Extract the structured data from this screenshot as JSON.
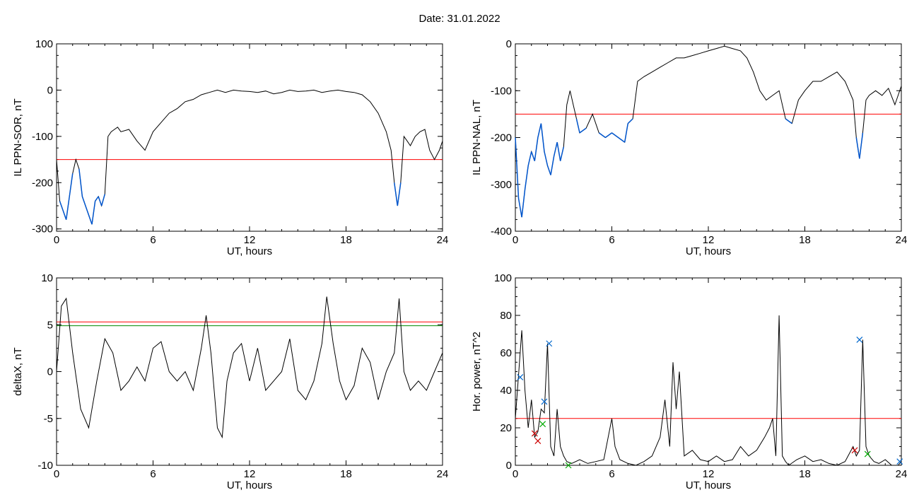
{
  "header": {
    "title": "Date:  31.01.2022"
  },
  "colors": {
    "threshold": "#ff0000",
    "highlight": "#0055cc",
    "second": "#008800",
    "marker_blue": "#0066cc",
    "marker_red": "#cc0000",
    "marker_green": "#00aa00"
  },
  "chart_data": [
    {
      "type": "line",
      "ylabel": "IL PPN-SOR, nT",
      "xlabel": "UT, hours",
      "xlim": [
        0,
        24
      ],
      "ylim": [
        -305,
        100
      ],
      "xticks": [
        0,
        6,
        12,
        18,
        24
      ],
      "yticks": [
        -300,
        -200,
        -100,
        0,
        100
      ],
      "thresholds": [
        -150
      ],
      "highlight_below": -150,
      "series": [
        {
          "x": [
            0,
            0.2,
            0.4,
            0.6,
            0.8,
            1,
            1.2,
            1.4,
            1.6,
            1.8,
            2,
            2.2,
            2.4,
            2.6,
            2.8,
            3,
            3.2,
            3.4,
            3.6,
            3.8,
            4,
            4.5,
            5,
            5.5,
            6,
            6.5,
            7,
            7.5,
            8,
            8.5,
            9,
            9.5,
            10,
            10.5,
            11,
            11.5,
            12,
            12.5,
            13,
            13.5,
            14,
            14.5,
            15,
            15.5,
            16,
            16.5,
            17,
            17.5,
            18,
            18.5,
            19,
            19.5,
            20,
            20.5,
            20.8,
            21,
            21.2,
            21.4,
            21.6,
            21.8,
            22,
            22.3,
            22.6,
            22.9,
            23.2,
            23.5,
            23.8,
            24
          ],
          "y": [
            -150,
            -240,
            -260,
            -280,
            -230,
            -180,
            -150,
            -170,
            -230,
            -250,
            -270,
            -290,
            -240,
            -230,
            -250,
            -225,
            -100,
            -90,
            -85,
            -80,
            -90,
            -85,
            -110,
            -130,
            -90,
            -70,
            -50,
            -40,
            -25,
            -20,
            -10,
            -5,
            0,
            -5,
            0,
            -2,
            -3,
            -5,
            -2,
            -8,
            -5,
            0,
            -3,
            -2,
            0,
            -5,
            -2,
            0,
            -3,
            -5,
            -10,
            -25,
            -50,
            -90,
            -130,
            -200,
            -250,
            -200,
            -100,
            -110,
            -120,
            -100,
            -90,
            -85,
            -130,
            -150,
            -130,
            -110
          ]
        }
      ]
    },
    {
      "type": "line",
      "ylabel": "IL PPN-NAL, nT",
      "xlabel": "UT, hours",
      "xlim": [
        0,
        24
      ],
      "ylim": [
        -400,
        0
      ],
      "xticks": [
        0,
        6,
        12,
        18,
        24
      ],
      "yticks": [
        -400,
        -300,
        -200,
        -100,
        0
      ],
      "thresholds": [
        -150
      ],
      "highlight_below": -150,
      "series": [
        {
          "x": [
            0,
            0.2,
            0.4,
            0.6,
            0.8,
            1,
            1.2,
            1.4,
            1.6,
            1.8,
            2,
            2.2,
            2.4,
            2.6,
            2.8,
            3,
            3.2,
            3.4,
            3.6,
            3.8,
            4,
            4.4,
            4.8,
            5.2,
            5.6,
            6,
            6.4,
            6.8,
            7,
            7.3,
            7.6,
            8,
            8.5,
            9,
            9.5,
            10,
            10.5,
            11,
            11.5,
            12,
            12.5,
            13,
            13.5,
            14,
            14.4,
            14.8,
            15.2,
            15.6,
            16,
            16.4,
            16.8,
            17.2,
            17.6,
            18,
            18.5,
            19,
            19.5,
            20,
            20.5,
            21,
            21.2,
            21.4,
            21.6,
            21.8,
            22,
            22.4,
            22.8,
            23.2,
            23.6,
            24
          ],
          "y": [
            -200,
            -330,
            -370,
            -310,
            -260,
            -230,
            -250,
            -200,
            -170,
            -230,
            -260,
            -280,
            -240,
            -210,
            -250,
            -220,
            -130,
            -100,
            -130,
            -160,
            -190,
            -180,
            -150,
            -190,
            -200,
            -190,
            -200,
            -210,
            -170,
            -160,
            -80,
            -70,
            -60,
            -50,
            -40,
            -30,
            -30,
            -25,
            -20,
            -15,
            -10,
            -5,
            -10,
            -15,
            -30,
            -60,
            -100,
            -120,
            -110,
            -100,
            -160,
            -170,
            -120,
            -100,
            -80,
            -80,
            -70,
            -60,
            -80,
            -120,
            -200,
            -245,
            -190,
            -120,
            -110,
            -100,
            -110,
            -95,
            -130,
            -90
          ]
        }
      ]
    },
    {
      "type": "line",
      "ylabel": "deltaX, nT",
      "xlabel": "UT, hours",
      "xlim": [
        0,
        24
      ],
      "ylim": [
        -10,
        10
      ],
      "xticks": [
        0,
        6,
        12,
        18,
        24
      ],
      "yticks": [
        -10,
        -5,
        0,
        5,
        10
      ],
      "thresholds": [
        5.3
      ],
      "secondary_lines": [
        4.9
      ],
      "series": [
        {
          "x": [
            0,
            0.3,
            0.6,
            1,
            1.5,
            2,
            2.5,
            3,
            3.5,
            4,
            4.5,
            5,
            5.5,
            6,
            6.5,
            7,
            7.5,
            8,
            8.5,
            9,
            9.3,
            9.6,
            10,
            10.3,
            10.6,
            11,
            11.5,
            12,
            12.5,
            13,
            13.5,
            14,
            14.5,
            15,
            15.5,
            16,
            16.5,
            16.8,
            17.2,
            17.6,
            18,
            18.5,
            19,
            19.5,
            20,
            20.5,
            21,
            21.3,
            21.6,
            22,
            22.5,
            23,
            23.5,
            24
          ],
          "y": [
            0,
            7,
            7.8,
            2,
            -4,
            -6,
            -1,
            3.5,
            2,
            -2,
            -1,
            0.5,
            -1,
            2.5,
            3.2,
            0,
            -1,
            0,
            -2,
            2.5,
            6,
            2,
            -6,
            -7,
            -1,
            2,
            3,
            -1,
            2.5,
            -2,
            -1,
            0,
            3.5,
            -2,
            -3,
            -1,
            3,
            8,
            3,
            -1,
            -3,
            -1.5,
            2.5,
            1,
            -3,
            0,
            2,
            7.8,
            0,
            -2,
            -1,
            -2,
            0,
            2
          ]
        }
      ]
    },
    {
      "type": "line",
      "ylabel": "Hor. power, nT^2",
      "xlabel": "UT, hours",
      "xlim": [
        0,
        24
      ],
      "ylim": [
        0,
        100
      ],
      "xticks": [
        0,
        6,
        12,
        18,
        24
      ],
      "yticks": [
        0,
        20,
        40,
        60,
        80,
        100
      ],
      "thresholds": [
        25
      ],
      "series": [
        {
          "x": [
            0,
            0.2,
            0.4,
            0.6,
            0.8,
            1,
            1.2,
            1.4,
            1.6,
            1.8,
            2,
            2.2,
            2.4,
            2.6,
            2.8,
            3,
            3.2,
            3.5,
            4,
            4.5,
            5,
            5.5,
            6,
            6.2,
            6.5,
            7,
            7.5,
            8,
            8.5,
            9,
            9.3,
            9.6,
            9.8,
            10,
            10.2,
            10.5,
            11,
            11.5,
            12,
            12.5,
            13,
            13.5,
            14,
            14.5,
            15,
            15.5,
            15.8,
            16,
            16.2,
            16.4,
            16.6,
            16.8,
            17,
            17.5,
            18,
            18.5,
            19,
            19.5,
            20,
            20.5,
            21,
            21.2,
            21.4,
            21.6,
            21.8,
            22,
            22.3,
            22.6,
            23,
            23.4,
            23.8,
            24
          ],
          "y": [
            25,
            48,
            72,
            40,
            20,
            35,
            15,
            18,
            30,
            28,
            65,
            10,
            5,
            30,
            10,
            5,
            2,
            1,
            3,
            1,
            2,
            3,
            25,
            10,
            3,
            1,
            0,
            2,
            5,
            15,
            35,
            10,
            55,
            30,
            50,
            5,
            8,
            3,
            2,
            5,
            2,
            3,
            10,
            5,
            8,
            15,
            20,
            25,
            5,
            80,
            5,
            2,
            0,
            3,
            5,
            2,
            3,
            1,
            0,
            2,
            10,
            5,
            8,
            67,
            10,
            5,
            2,
            1,
            3,
            0,
            0,
            2
          ]
        }
      ],
      "markers": {
        "blue": {
          "x": [
            0.3,
            1.8,
            2.1,
            21.4,
            23.9
          ],
          "y": [
            47,
            34,
            65,
            67,
            2
          ]
        },
        "red": {
          "x": [
            1.2,
            1.4,
            21.1
          ],
          "y": [
            17,
            13,
            8
          ]
        },
        "green": {
          "x": [
            1.7,
            3.3,
            21.9
          ],
          "y": [
            22,
            0,
            6
          ]
        }
      }
    }
  ]
}
